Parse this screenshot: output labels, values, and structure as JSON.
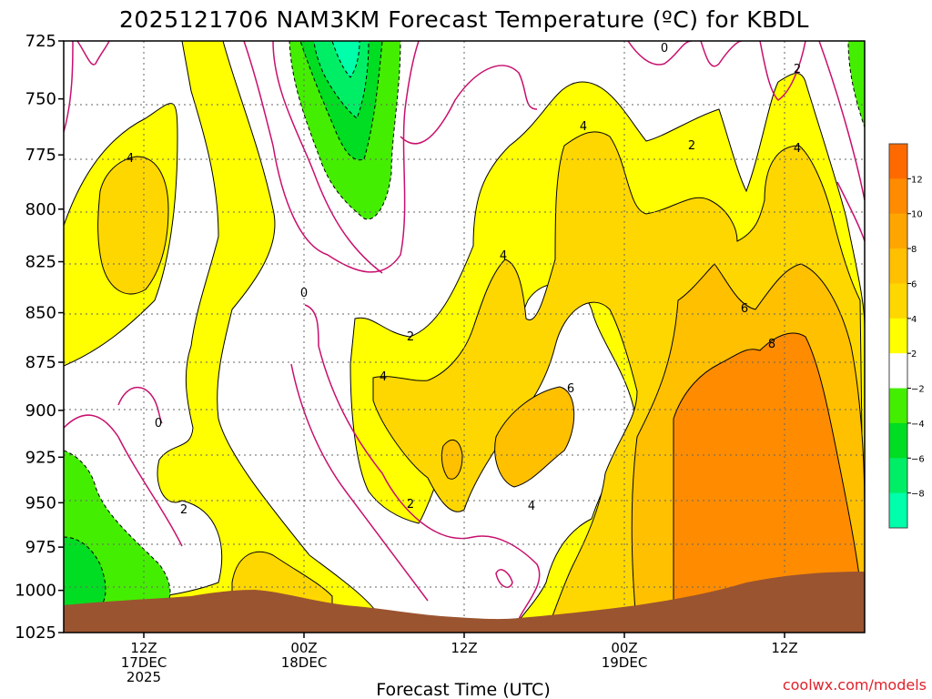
{
  "chart_data": {
    "type": "heatmap",
    "title": "2025121706 NAM3KM Forecast Temperature (ºC) for KBDL",
    "xlabel": "Forecast Time (UTC)",
    "ylabel": "",
    "y_axis": {
      "units": "hPa",
      "inverted": true,
      "range": [
        725,
        1025
      ],
      "ticks": [
        "725",
        "750",
        "775",
        "800",
        "825",
        "850",
        "875",
        "900",
        "925",
        "950",
        "975",
        "1000",
        "1025"
      ]
    },
    "x_axis": {
      "range_hours_from_init": [
        6,
        66
      ],
      "ticks": [
        {
          "hour": 12,
          "line1": "12Z",
          "line2": "17DEC",
          "line3": "2025"
        },
        {
          "hour": 24,
          "line1": "00Z",
          "line2": "18DEC",
          "line3": ""
        },
        {
          "hour": 36,
          "line1": "12Z",
          "line2": "",
          "line3": ""
        },
        {
          "hour": 48,
          "line1": "00Z",
          "line2": "19DEC",
          "line3": ""
        },
        {
          "hour": 60,
          "line1": "12Z",
          "line2": "",
          "line3": ""
        }
      ]
    },
    "grid": true,
    "colorbar": {
      "position": "right",
      "labels": [
        "12",
        "10",
        "8",
        "6",
        "4",
        "2",
        "−2",
        "−4",
        "−6",
        "−8"
      ],
      "colors": [
        "#ff6a00",
        "#ff8c00",
        "#ffa500",
        "#ffc000",
        "#ffd700",
        "#ffff00",
        "#ffffff",
        "#44ee00",
        "#00dd22",
        "#00ee66",
        "#00ffaa"
      ]
    },
    "contour_labels": [
      "0",
      "0",
      "0",
      "2",
      "2",
      "2",
      "2",
      "2",
      "4",
      "4",
      "4",
      "4",
      "4",
      "4",
      "6",
      "6",
      "8"
    ],
    "terrain_color": "#9b5430",
    "notes": "Time-height cross section; warm advection with temperatures rising to 8-10 C below 900 hPa by 12Z 19DEC."
  },
  "credit": "coolwx.com/models"
}
